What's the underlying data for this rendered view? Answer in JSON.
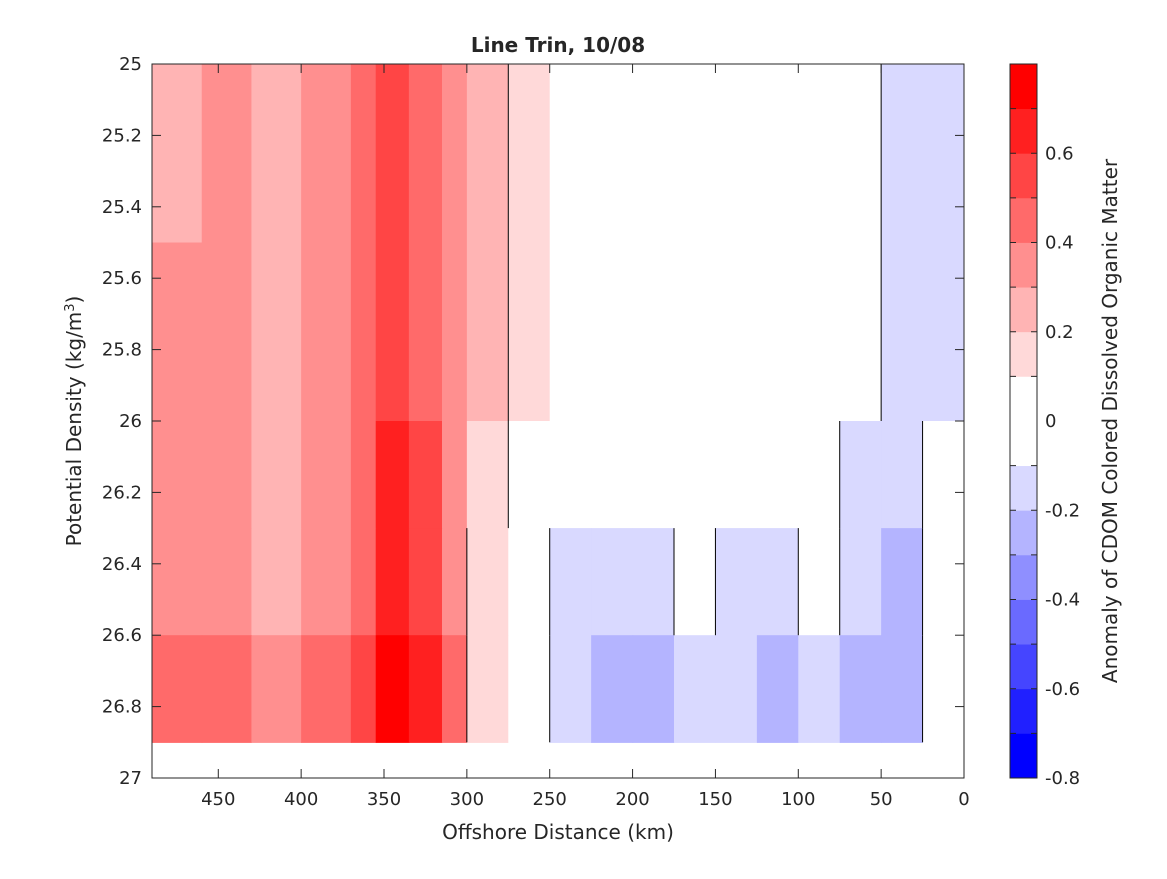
{
  "chart_data": {
    "type": "heatmap",
    "subtype": "filled-contour",
    "title": "Line Trin, 10/08",
    "xlabel": "Offshore Distance (km)",
    "ylabel_main": "Potential Density (kg/m",
    "ylabel_sup": "3",
    "ylabel_close": ")",
    "xlim": [
      490,
      0
    ],
    "x_reversed": true,
    "ylim": [
      25,
      27
    ],
    "y_reversed": true,
    "x_ticks": [
      450,
      400,
      350,
      300,
      250,
      200,
      150,
      100,
      50,
      0
    ],
    "x_tick_labels": [
      "450",
      "400",
      "350",
      "300",
      "250",
      "200",
      "150",
      "100",
      "50",
      "0"
    ],
    "y_ticks": [
      25,
      25.2,
      25.4,
      25.6,
      25.8,
      26,
      26.2,
      26.4,
      26.6,
      26.8,
      27
    ],
    "y_tick_labels": [
      "25",
      "25.2",
      "25.4",
      "25.6",
      "25.8",
      "26",
      "26.2",
      "26.4",
      "26.6",
      "26.8",
      "27"
    ],
    "data_extent": {
      "x": [
        490,
        0
      ],
      "y": [
        25,
        26.9
      ]
    },
    "colorbar": {
      "label": "Anomaly of CDOM Colored Dissolved Organic Matter",
      "range": [
        -0.8,
        0.8
      ],
      "levels": [
        -0.8,
        -0.7,
        -0.6,
        -0.5,
        -0.4,
        -0.3,
        -0.2,
        -0.1,
        0.1,
        0.2,
        0.3,
        0.4,
        0.5,
        0.6,
        0.7,
        0.8
      ],
      "level_colors": [
        "#0000ff",
        "#2020ff",
        "#4545ff",
        "#6a6aff",
        "#8f8fff",
        "#b4b4ff",
        "#d9d9ff",
        "#ffffff",
        "#ffd9d9",
        "#ffb4b4",
        "#ff8f8f",
        "#ff6a6a",
        "#ff4545",
        "#ff2020",
        "#ff0000"
      ],
      "tick_values": [
        -0.8,
        -0.6,
        -0.4,
        -0.2,
        0,
        0.2,
        0.4,
        0.6
      ],
      "tick_labels": [
        "-0.8",
        "-0.6",
        "-0.4",
        "-0.2",
        "0",
        "0.2",
        "0.4",
        "0.6"
      ]
    },
    "colormap_anchors": {
      "negative": "#0000ff",
      "zero": "#ffffff",
      "positive": "#ff0000"
    },
    "zero_contour_color": "#000000",
    "band_cuts": {
      "y": [
        25.0,
        25.5,
        26.0,
        26.3,
        26.6,
        26.9
      ],
      "x": [
        490,
        460,
        430,
        400,
        370,
        355,
        335,
        315,
        300,
        275,
        250,
        225,
        200,
        175,
        150,
        125,
        100,
        75,
        50,
        25,
        0
      ]
    },
    "values": [
      [
        0.25,
        0.3,
        0.25,
        0.35,
        0.45,
        0.55,
        0.45,
        0.35,
        0.2,
        0.1,
        0.0,
        0.0,
        0.0,
        0.0,
        0.0,
        0.0,
        0.0,
        -0.05,
        -0.15,
        -0.15
      ],
      [
        0.3,
        0.3,
        0.2,
        0.35,
        0.45,
        0.55,
        0.45,
        0.35,
        0.2,
        0.1,
        0.0,
        0.0,
        0.0,
        0.0,
        0.0,
        0.0,
        0.0,
        -0.05,
        -0.15,
        -0.15
      ],
      [
        0.3,
        0.3,
        0.25,
        0.35,
        0.45,
        0.6,
        0.5,
        0.35,
        0.15,
        0.05,
        -0.05,
        -0.05,
        0.0,
        -0.05,
        -0.05,
        0.0,
        -0.05,
        -0.15,
        -0.2,
        -0.1
      ],
      [
        0.35,
        0.35,
        0.25,
        0.35,
        0.45,
        0.65,
        0.55,
        0.35,
        0.1,
        0.0,
        -0.15,
        -0.2,
        -0.15,
        -0.1,
        -0.15,
        -0.15,
        -0.1,
        -0.2,
        -0.25,
        -0.1
      ],
      [
        0.45,
        0.45,
        0.3,
        0.4,
        0.5,
        0.7,
        0.6,
        0.4,
        0.1,
        0.0,
        -0.2,
        -0.3,
        -0.25,
        -0.15,
        -0.2,
        -0.25,
        -0.15,
        -0.25,
        -0.3,
        -0.1
      ]
    ]
  }
}
